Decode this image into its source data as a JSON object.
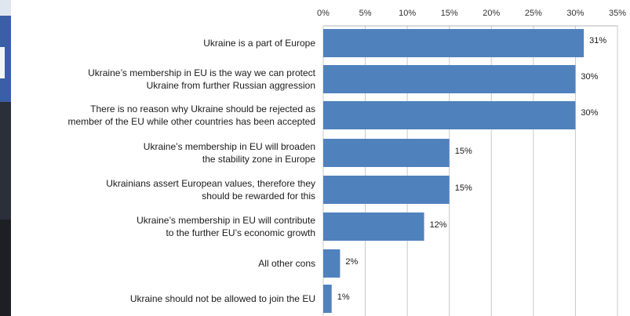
{
  "chart_data": {
    "type": "bar",
    "orientation": "horizontal",
    "categories": [
      [
        "Ukraine is a part of Europe"
      ],
      [
        "Ukraine’s membership in EU is the way we can protect",
        "Ukraine from further Russian aggression"
      ],
      [
        "There is no reason why Ukraine should be rejected as",
        "member of the EU while other countries has been accepted"
      ],
      [
        "Ukraine’s membership in EU will broaden",
        "the stability zone in Europe"
      ],
      [
        "Ukrainians assert European values, therefore they",
        "should be rewarded for this"
      ],
      [
        "Ukraine’s membership in EU will contribute",
        "to the further EU’s economic growth"
      ],
      [
        "All other cons"
      ],
      [
        "Ukraine should not be allowed to join the EU"
      ]
    ],
    "values": [
      31,
      30,
      30,
      15,
      15,
      12,
      2,
      1
    ],
    "value_labels": [
      "31%",
      "30%",
      "30%",
      "15%",
      "15%",
      "12%",
      "2%",
      "1%"
    ],
    "x_ticks": [
      0,
      5,
      10,
      15,
      20,
      25,
      30,
      35
    ],
    "x_tick_labels": [
      "0%",
      "5%",
      "10%",
      "15%",
      "20%",
      "25%",
      "30%",
      "35%"
    ],
    "xlim": [
      0,
      35
    ],
    "x_axis_position": "top",
    "grid": true,
    "bar_color": "#4f81bd"
  }
}
